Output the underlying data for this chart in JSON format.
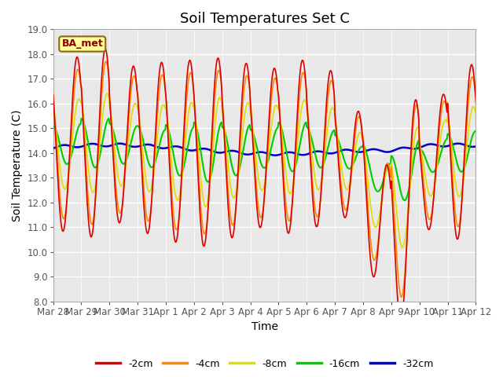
{
  "title": "Soil Temperatures Set C",
  "xlabel": "Time",
  "ylabel": "Soil Temperature (C)",
  "ylim": [
    8.0,
    19.0
  ],
  "yticks": [
    8.0,
    9.0,
    10.0,
    11.0,
    12.0,
    13.0,
    14.0,
    15.0,
    16.0,
    17.0,
    18.0,
    19.0
  ],
  "xtick_labels": [
    "Mar 28",
    "Mar 29",
    "Mar 30",
    "Mar 31",
    "Apr 1",
    "Apr 2",
    "Apr 3",
    "Apr 4",
    "Apr 5",
    "Apr 6",
    "Apr 7",
    "Apr 8",
    "Apr 9",
    "Apr 10",
    "Apr 11",
    "Apr 12"
  ],
  "series_colors": [
    "#dd0000",
    "#ff8800",
    "#dddd00",
    "#00cc00",
    "#0000cc"
  ],
  "series_labels": [
    "-2cm",
    "-4cm",
    "-8cm",
    "-16cm",
    "-32cm"
  ],
  "legend_label": "BA_met",
  "tick_fontsize": 8.5,
  "axis_label_fontsize": 10,
  "title_fontsize": 13
}
